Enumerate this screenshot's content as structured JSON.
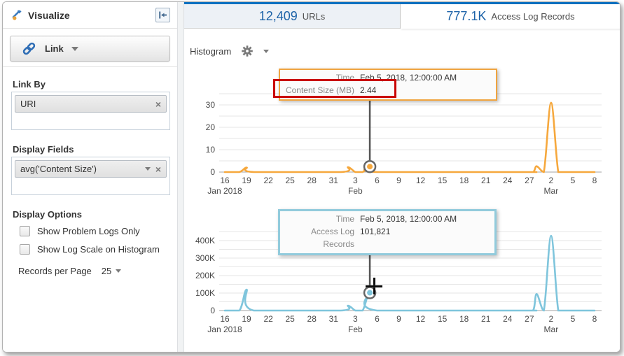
{
  "sidebar": {
    "title": "Visualize",
    "link_button_label": "Link",
    "link_by_label": "Link By",
    "link_by_tag": "URI",
    "display_fields_label": "Display Fields",
    "display_field_tag": "avg('Content Size')",
    "display_options_label": "Display Options",
    "checkboxes": [
      {
        "label": "Show Problem Logs Only",
        "checked": false
      },
      {
        "label": "Show Log Scale on Histogram",
        "checked": false
      }
    ],
    "records_per_page_label": "Records per Page",
    "records_per_page_value": "25"
  },
  "tabs": [
    {
      "count": "12,409",
      "label": "URLs",
      "selected": false
    },
    {
      "count": "777.1K",
      "label": "Access Log Records",
      "selected": true
    }
  ],
  "toolbar": {
    "chart_type_label": "Histogram"
  },
  "colors": {
    "accent_blue": "#1d63a8",
    "tab_top_border": "#0b70c0",
    "orange_series": "#f6a83d",
    "blue_series": "#7fc5dc",
    "annotation_red": "#c90404"
  },
  "chart_data": [
    {
      "type": "line",
      "name": "content-size-histogram",
      "series_name": "Content Size (MB)",
      "color": "#f6a83d",
      "x_start_date": "Jan 16, 2018",
      "x_tick_interval_days": 3,
      "x_ticks": [
        {
          "day": 0,
          "label": "16"
        },
        {
          "day": 3,
          "label": "19"
        },
        {
          "day": 6,
          "label": "22"
        },
        {
          "day": 9,
          "label": "25"
        },
        {
          "day": 12,
          "label": "28"
        },
        {
          "day": 15,
          "label": "31"
        },
        {
          "day": 18,
          "label": "3"
        },
        {
          "day": 21,
          "label": "6"
        },
        {
          "day": 24,
          "label": "9"
        },
        {
          "day": 27,
          "label": "12"
        },
        {
          "day": 30,
          "label": "15"
        },
        {
          "day": 33,
          "label": "18"
        },
        {
          "day": 36,
          "label": "21"
        },
        {
          "day": 39,
          "label": "24"
        },
        {
          "day": 42,
          "label": "27"
        },
        {
          "day": 45,
          "label": "2"
        },
        {
          "day": 48,
          "label": "5"
        },
        {
          "day": 51,
          "label": "8"
        }
      ],
      "month_labels": [
        {
          "day": 0,
          "label": "Jan 2018"
        },
        {
          "day": 18,
          "label": "Feb"
        },
        {
          "day": 45,
          "label": "Mar"
        }
      ],
      "ylim": [
        0,
        35
      ],
      "grid_step": 5,
      "y_ticks": [
        {
          "v": 0,
          "label": "0"
        },
        {
          "v": 10,
          "label": "10"
        },
        {
          "v": 20,
          "label": "20"
        },
        {
          "v": 30,
          "label": "30"
        }
      ],
      "points_day_value": [
        [
          0,
          0
        ],
        [
          2,
          0
        ],
        [
          3,
          2
        ],
        [
          4,
          0
        ],
        [
          16,
          0
        ],
        [
          17,
          2.2
        ],
        [
          18,
          0
        ],
        [
          19,
          0
        ],
        [
          20,
          2.44
        ],
        [
          21,
          0
        ],
        [
          41,
          0
        ],
        [
          42.5,
          0
        ],
        [
          43,
          2.6
        ],
        [
          44,
          0
        ],
        [
          45,
          31
        ],
        [
          46,
          0
        ],
        [
          47,
          0
        ],
        [
          51,
          0
        ]
      ],
      "highlight": {
        "day": 20,
        "value": 2.44,
        "date": "Feb 5, 2018, 12:00:00 AM"
      },
      "tooltip": {
        "rows": [
          {
            "label": "Time",
            "value": "Feb 5, 2018, 12:00:00 AM"
          },
          {
            "label": "Content Size (MB)",
            "value": "2.44"
          }
        ],
        "highlighted_row": 1
      }
    },
    {
      "type": "line",
      "name": "access-log-records-histogram",
      "series_name": "Access Log Records",
      "color": "#7fc5dc",
      "x_start_date": "Jan 16, 2018",
      "x_tick_interval_days": 3,
      "x_ticks": [
        {
          "day": 0,
          "label": "16"
        },
        {
          "day": 3,
          "label": "19"
        },
        {
          "day": 6,
          "label": "22"
        },
        {
          "day": 9,
          "label": "25"
        },
        {
          "day": 12,
          "label": "28"
        },
        {
          "day": 15,
          "label": "31"
        },
        {
          "day": 18,
          "label": "3"
        },
        {
          "day": 21,
          "label": "6"
        },
        {
          "day": 24,
          "label": "9"
        },
        {
          "day": 27,
          "label": "12"
        },
        {
          "day": 30,
          "label": "15"
        },
        {
          "day": 33,
          "label": "18"
        },
        {
          "day": 36,
          "label": "21"
        },
        {
          "day": 39,
          "label": "24"
        },
        {
          "day": 42,
          "label": "27"
        },
        {
          "day": 45,
          "label": "2"
        },
        {
          "day": 48,
          "label": "5"
        },
        {
          "day": 51,
          "label": "8"
        }
      ],
      "month_labels": [
        {
          "day": 0,
          "label": "Jan 2018"
        },
        {
          "day": 18,
          "label": "Feb"
        },
        {
          "day": 45,
          "label": "Mar"
        }
      ],
      "ylim": [
        0,
        450000
      ],
      "grid_step": 50000,
      "y_ticks": [
        {
          "v": 0,
          "label": "0"
        },
        {
          "v": 100000,
          "label": "100K"
        },
        {
          "v": 200000,
          "label": "200K"
        },
        {
          "v": 300000,
          "label": "300K"
        },
        {
          "v": 400000,
          "label": "400K"
        }
      ],
      "points_day_value": [
        [
          0,
          0
        ],
        [
          2,
          0
        ],
        [
          3,
          120000
        ],
        [
          4,
          0
        ],
        [
          16,
          0
        ],
        [
          17,
          28000
        ],
        [
          18,
          0
        ],
        [
          19,
          0
        ],
        [
          20,
          101821
        ],
        [
          21,
          0
        ],
        [
          41,
          0
        ],
        [
          42.5,
          0
        ],
        [
          43,
          95000
        ],
        [
          44,
          0
        ],
        [
          45,
          428000
        ],
        [
          46,
          0
        ],
        [
          47,
          0
        ],
        [
          51,
          0
        ]
      ],
      "highlight": {
        "day": 20,
        "value": 101821,
        "date": "Feb 5, 2018, 12:00:00 AM"
      },
      "tooltip": {
        "rows": [
          {
            "label": "Time",
            "value": "Feb 5, 2018, 12:00:00 AM"
          },
          {
            "label": "Access Log Records",
            "value": "101,821"
          }
        ]
      }
    }
  ]
}
